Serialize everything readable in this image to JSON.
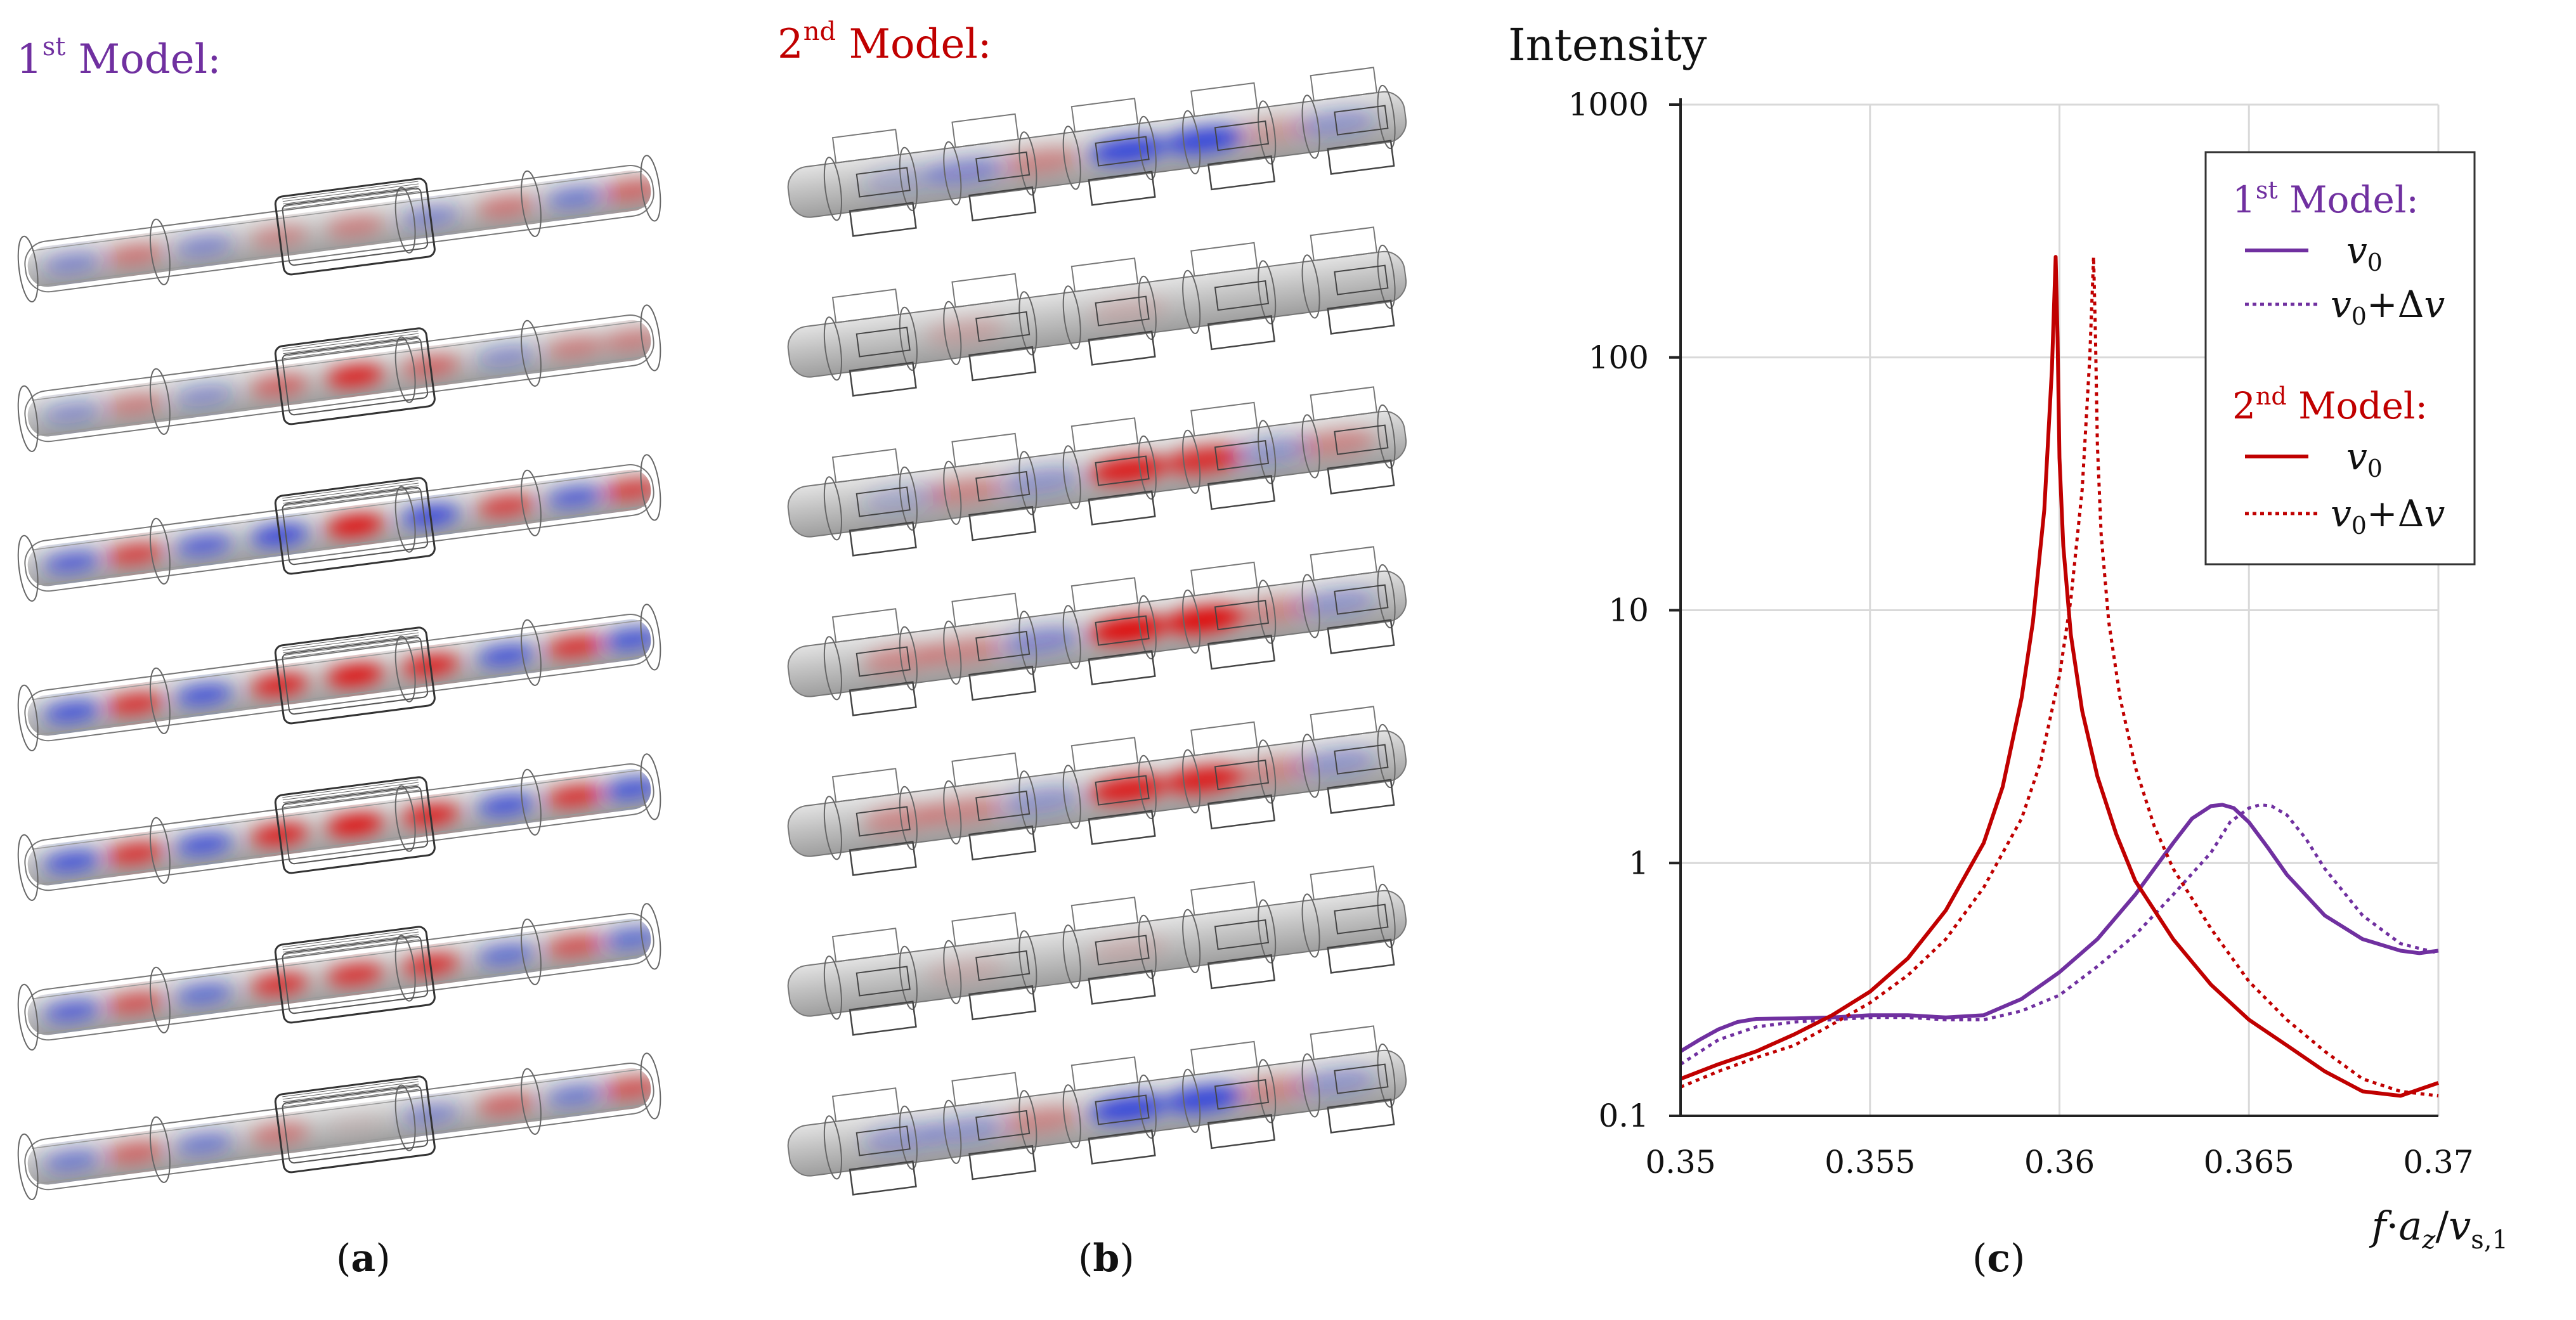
{
  "panels": {
    "a": {
      "heading_prefix": "1",
      "heading_sup": "st",
      "heading_text": " Model:",
      "heading_color": "#7030a0",
      "caption": "a"
    },
    "b": {
      "heading_prefix": "2",
      "heading_sup": "nd",
      "heading_text": " Model:",
      "heading_color": "#c00000",
      "caption": "b"
    },
    "c": {
      "caption": "c"
    }
  },
  "colors": {
    "model1": "#7030a0",
    "model2": "#c00000",
    "field_red": "#e00000",
    "field_blue": "#2233dd",
    "rod_grey": "#c4c4c4",
    "grid": "#d9d9d9"
  },
  "field_patterns": {
    "model1": [
      [
        -0.4,
        0.4,
        -0.4,
        0.3,
        0.35,
        -0.4,
        0.4,
        -0.5,
        0.5
      ],
      [
        -0.35,
        0.35,
        -0.35,
        0.5,
        0.9,
        0.5,
        -0.35,
        0.35,
        0.35
      ],
      [
        -0.7,
        0.7,
        -0.7,
        -0.9,
        1.0,
        -0.9,
        0.7,
        -0.7,
        0.7
      ],
      [
        -0.8,
        0.8,
        -0.8,
        0.9,
        1.0,
        0.9,
        -0.8,
        0.8,
        -0.8
      ],
      [
        -0.8,
        0.8,
        -0.8,
        0.9,
        1.0,
        0.9,
        -0.8,
        0.8,
        -0.8
      ],
      [
        -0.7,
        0.6,
        -0.6,
        0.8,
        0.8,
        0.8,
        -0.6,
        0.6,
        -0.6
      ],
      [
        -0.5,
        0.5,
        -0.5,
        0.4,
        0.05,
        -0.4,
        0.5,
        -0.5,
        0.6
      ]
    ],
    "model2": [
      [
        0,
        -0.2,
        -0.4,
        0.3,
        -0.9,
        -0.9,
        0.2,
        -0.3,
        0
      ],
      [
        0,
        0,
        0.15,
        0,
        0.1,
        0,
        0,
        0,
        0
      ],
      [
        0,
        -0.2,
        0.3,
        -0.3,
        0.9,
        0.8,
        -0.3,
        0.3,
        0
      ],
      [
        0,
        0.3,
        0.3,
        -0.4,
        1.0,
        1.0,
        0.3,
        -0.3,
        0
      ],
      [
        0,
        0.3,
        0.3,
        -0.3,
        0.9,
        0.9,
        0.3,
        -0.3,
        0
      ],
      [
        0,
        0,
        0.1,
        0,
        0.1,
        0,
        0,
        0,
        0
      ],
      [
        0,
        -0.3,
        -0.3,
        0.3,
        -0.9,
        -0.9,
        0.3,
        -0.3,
        0
      ]
    ]
  },
  "chart_data": {
    "type": "line",
    "title": "Intensity",
    "xlabel": "f·a_z/v_s,1",
    "xlabel_parts": {
      "f": "f",
      "dot": "·",
      "a": "a",
      "a_sub": "z",
      "slash": "/",
      "v": "v",
      "v_sub": "s,1"
    },
    "ylabel": "",
    "yscale": "log",
    "xlim": [
      0.35,
      0.37
    ],
    "ylim": [
      0.1,
      1000
    ],
    "x_ticks": [
      0.35,
      0.355,
      0.36,
      0.365,
      0.37
    ],
    "x_tick_labels": [
      "0.35",
      "0.355",
      "0.36",
      "0.365",
      "0.37"
    ],
    "y_ticks": [
      0.1,
      1,
      10,
      100,
      1000
    ],
    "y_tick_labels": [
      "0.1",
      "1",
      "10",
      "100",
      "1000"
    ],
    "grid": true,
    "legend_position": "top-right",
    "legend": {
      "group1": {
        "prefix": "1",
        "sup": "st",
        "text": " Model:"
      },
      "group2": {
        "prefix": "2",
        "sup": "nd",
        "text": " Model:"
      },
      "v0": "v",
      "v0_sub": "0",
      "dv_plus": "+",
      "dv_delta": "Δ",
      "dv_v": "v"
    },
    "series": [
      {
        "name": "1st Model v0",
        "group": "1st Model",
        "style": "solid",
        "color": "#7030a0",
        "x": [
          0.35,
          0.3505,
          0.351,
          0.3515,
          0.352,
          0.353,
          0.354,
          0.355,
          0.356,
          0.357,
          0.358,
          0.359,
          0.36,
          0.361,
          0.362,
          0.363,
          0.3635,
          0.364,
          0.3643,
          0.3646,
          0.365,
          0.3655,
          0.366,
          0.367,
          0.368,
          0.369,
          0.3695,
          0.37
        ],
        "y": [
          0.18,
          0.2,
          0.22,
          0.235,
          0.242,
          0.243,
          0.245,
          0.25,
          0.25,
          0.245,
          0.25,
          0.29,
          0.37,
          0.5,
          0.75,
          1.2,
          1.5,
          1.68,
          1.7,
          1.65,
          1.45,
          1.15,
          0.9,
          0.62,
          0.5,
          0.45,
          0.44,
          0.45
        ]
      },
      {
        "name": "1st Model v0+Δv",
        "group": "1st Model",
        "style": "dotted",
        "color": "#7030a0",
        "x": [
          0.35,
          0.351,
          0.352,
          0.353,
          0.354,
          0.355,
          0.356,
          0.357,
          0.358,
          0.359,
          0.36,
          0.361,
          0.362,
          0.363,
          0.364,
          0.3645,
          0.365,
          0.3653,
          0.3656,
          0.366,
          0.3665,
          0.367,
          0.368,
          0.369,
          0.37
        ],
        "y": [
          0.16,
          0.2,
          0.225,
          0.235,
          0.24,
          0.245,
          0.245,
          0.24,
          0.24,
          0.26,
          0.3,
          0.39,
          0.52,
          0.75,
          1.1,
          1.45,
          1.65,
          1.7,
          1.68,
          1.55,
          1.25,
          0.95,
          0.62,
          0.48,
          0.44
        ]
      },
      {
        "name": "2nd Model v0",
        "group": "2nd Model",
        "style": "solid",
        "color": "#c00000",
        "x": [
          0.35,
          0.351,
          0.352,
          0.353,
          0.354,
          0.355,
          0.356,
          0.357,
          0.358,
          0.3585,
          0.359,
          0.3593,
          0.3596,
          0.3598,
          0.3599,
          0.35995,
          0.36,
          0.3601,
          0.3603,
          0.3606,
          0.361,
          0.3615,
          0.362,
          0.363,
          0.364,
          0.365,
          0.366,
          0.367,
          0.368,
          0.369,
          0.37
        ],
        "y": [
          0.14,
          0.16,
          0.18,
          0.21,
          0.25,
          0.31,
          0.42,
          0.65,
          1.2,
          2.0,
          4.5,
          9,
          25,
          90,
          250,
          120,
          40,
          18,
          8,
          4,
          2.2,
          1.3,
          0.85,
          0.5,
          0.33,
          0.24,
          0.19,
          0.15,
          0.125,
          0.12,
          0.135
        ]
      },
      {
        "name": "2nd Model v0+Δv",
        "group": "2nd Model",
        "style": "dotted",
        "color": "#c00000",
        "x": [
          0.35,
          0.351,
          0.352,
          0.353,
          0.354,
          0.355,
          0.356,
          0.357,
          0.358,
          0.359,
          0.3595,
          0.36,
          0.3603,
          0.3606,
          0.3608,
          0.3609,
          0.36095,
          0.361,
          0.3611,
          0.3613,
          0.3616,
          0.362,
          0.3625,
          0.363,
          0.364,
          0.365,
          0.366,
          0.367,
          0.368,
          0.369,
          0.37
        ],
        "y": [
          0.13,
          0.15,
          0.17,
          0.19,
          0.23,
          0.28,
          0.36,
          0.5,
          0.8,
          1.5,
          2.5,
          5.5,
          11,
          30,
          100,
          250,
          120,
          45,
          20,
          9,
          4.5,
          2.4,
          1.4,
          0.95,
          0.55,
          0.34,
          0.24,
          0.18,
          0.14,
          0.125,
          0.12
        ]
      }
    ]
  }
}
